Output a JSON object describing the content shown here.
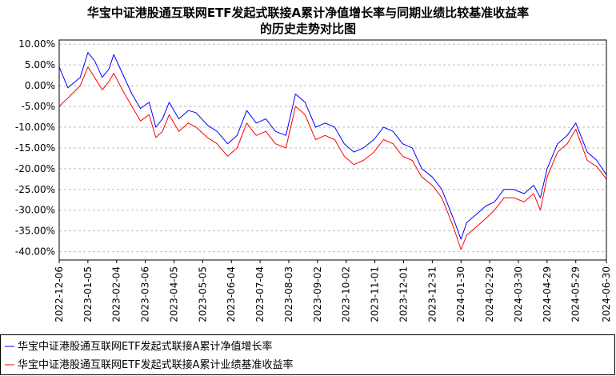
{
  "chart_data": {
    "type": "line",
    "title_lines": [
      "华宝中证港股通互联网ETF发起式联接A累计净值增长率与同期业绩比较基准收益率",
      "的历史走势对比图"
    ],
    "y_ticks": [
      "10.00%",
      "5.00%",
      "0.00%",
      "-5.00%",
      "-10.00%",
      "-15.00%",
      "-20.00%",
      "-25.00%",
      "-30.00%",
      "-35.00%",
      "-40.00%"
    ],
    "ylim": [
      -42,
      11
    ],
    "x_ticks": [
      "2022-12-06",
      "2023-01-05",
      "2023-02-04",
      "2023-03-06",
      "2023-04-05",
      "2023-05-05",
      "2023-06-04",
      "2023-07-04",
      "2023-08-03",
      "2023-09-02",
      "2023-10-02",
      "2023-11-01",
      "2023-12-01",
      "2023-12-31",
      "2024-01-30",
      "2024-02-29",
      "2024-03-30",
      "2024-04-29",
      "2024-05-29",
      "2024-06-30"
    ],
    "grid": "horizontal-dashed",
    "legend_placement": "bottom",
    "series": [
      {
        "name": "华宝中证港股通互联网ETF发起式联接A累计净值增长率",
        "color": "#0000ff",
        "dates": [
          "2022-12-06",
          "2022-12-15",
          "2022-12-28",
          "2023-01-05",
          "2023-01-12",
          "2023-01-20",
          "2023-01-27",
          "2023-02-01",
          "2023-02-10",
          "2023-02-20",
          "2023-03-01",
          "2023-03-10",
          "2023-03-17",
          "2023-03-24",
          "2023-03-31",
          "2023-04-10",
          "2023-04-20",
          "2023-04-28",
          "2023-05-10",
          "2023-05-20",
          "2023-05-31",
          "2023-06-10",
          "2023-06-20",
          "2023-06-30",
          "2023-07-10",
          "2023-07-20",
          "2023-07-31",
          "2023-08-10",
          "2023-08-20",
          "2023-08-31",
          "2023-09-10",
          "2023-09-20",
          "2023-09-30",
          "2023-10-10",
          "2023-10-20",
          "2023-10-31",
          "2023-11-10",
          "2023-11-20",
          "2023-11-30",
          "2023-12-10",
          "2023-12-20",
          "2023-12-31",
          "2024-01-10",
          "2024-01-22",
          "2024-01-30",
          "2024-02-05",
          "2024-02-15",
          "2024-02-25",
          "2024-03-05",
          "2024-03-15",
          "2024-03-25",
          "2024-04-05",
          "2024-04-15",
          "2024-04-22",
          "2024-04-29",
          "2024-05-10",
          "2024-05-20",
          "2024-05-29",
          "2024-06-10",
          "2024-06-20",
          "2024-06-30"
        ],
        "values": [
          4.5,
          -0.5,
          2.0,
          8.0,
          6.0,
          2.0,
          4.0,
          7.5,
          3.0,
          -2.0,
          -5.5,
          -4.0,
          -10.0,
          -8.0,
          -4.0,
          -8.0,
          -6.0,
          -6.5,
          -9.5,
          -11.0,
          -14.0,
          -12.0,
          -6.0,
          -9.0,
          -8.0,
          -11.0,
          -12.0,
          -2.0,
          -4.0,
          -10.0,
          -9.0,
          -10.0,
          -14.0,
          -16.0,
          -15.0,
          -13.0,
          -10.0,
          -11.0,
          -14.0,
          -15.0,
          -20.0,
          -22.0,
          -25.0,
          -32.0,
          -37.0,
          -33.0,
          -31.0,
          -29.0,
          -28.0,
          -25.0,
          -25.0,
          -26.0,
          -24.0,
          -27.0,
          -20.0,
          -14.0,
          -12.0,
          -9.0,
          -16.0,
          -18.0,
          -21.5
        ]
      },
      {
        "name": "华宝中证港股通互联网ETF发起式联接A累计业绩基准收益率",
        "color": "#ff0000",
        "dates": [
          "2022-12-06",
          "2022-12-15",
          "2022-12-28",
          "2023-01-05",
          "2023-01-12",
          "2023-01-20",
          "2023-01-27",
          "2023-02-01",
          "2023-02-10",
          "2023-02-20",
          "2023-03-01",
          "2023-03-10",
          "2023-03-17",
          "2023-03-24",
          "2023-03-31",
          "2023-04-10",
          "2023-04-20",
          "2023-04-28",
          "2023-05-10",
          "2023-05-20",
          "2023-05-31",
          "2023-06-10",
          "2023-06-20",
          "2023-06-30",
          "2023-07-10",
          "2023-07-20",
          "2023-07-31",
          "2023-08-10",
          "2023-08-20",
          "2023-08-31",
          "2023-09-10",
          "2023-09-20",
          "2023-09-30",
          "2023-10-10",
          "2023-10-20",
          "2023-10-31",
          "2023-11-10",
          "2023-11-20",
          "2023-11-30",
          "2023-12-10",
          "2023-12-20",
          "2023-12-31",
          "2024-01-10",
          "2024-01-22",
          "2024-01-30",
          "2024-02-05",
          "2024-02-15",
          "2024-02-25",
          "2024-03-05",
          "2024-03-15",
          "2024-03-25",
          "2024-04-05",
          "2024-04-15",
          "2024-04-22",
          "2024-04-29",
          "2024-05-10",
          "2024-05-20",
          "2024-05-29",
          "2024-06-10",
          "2024-06-20",
          "2024-06-30"
        ],
        "values": [
          -5.0,
          -3.0,
          0.0,
          4.5,
          2.0,
          -1.0,
          1.0,
          3.0,
          -1.0,
          -5.0,
          -8.5,
          -7.0,
          -12.5,
          -11.0,
          -7.0,
          -11.0,
          -9.0,
          -10.0,
          -12.5,
          -14.0,
          -17.0,
          -15.0,
          -9.0,
          -12.0,
          -11.0,
          -14.0,
          -15.0,
          -5.0,
          -7.0,
          -13.0,
          -12.0,
          -13.0,
          -17.0,
          -19.0,
          -18.0,
          -16.0,
          -13.0,
          -14.0,
          -17.0,
          -18.0,
          -22.0,
          -24.0,
          -27.0,
          -34.0,
          -39.5,
          -36.0,
          -34.0,
          -32.0,
          -30.0,
          -27.0,
          -27.0,
          -28.0,
          -26.0,
          -30.0,
          -22.0,
          -16.0,
          -14.0,
          -10.5,
          -18.0,
          -19.5,
          -22.5
        ]
      }
    ],
    "legend": [
      "华宝中证港股通互联网ETF发起式联接A累计净值增长率",
      "华宝中证港股通互联网ETF发起式联接A累计业绩基准收益率"
    ]
  }
}
